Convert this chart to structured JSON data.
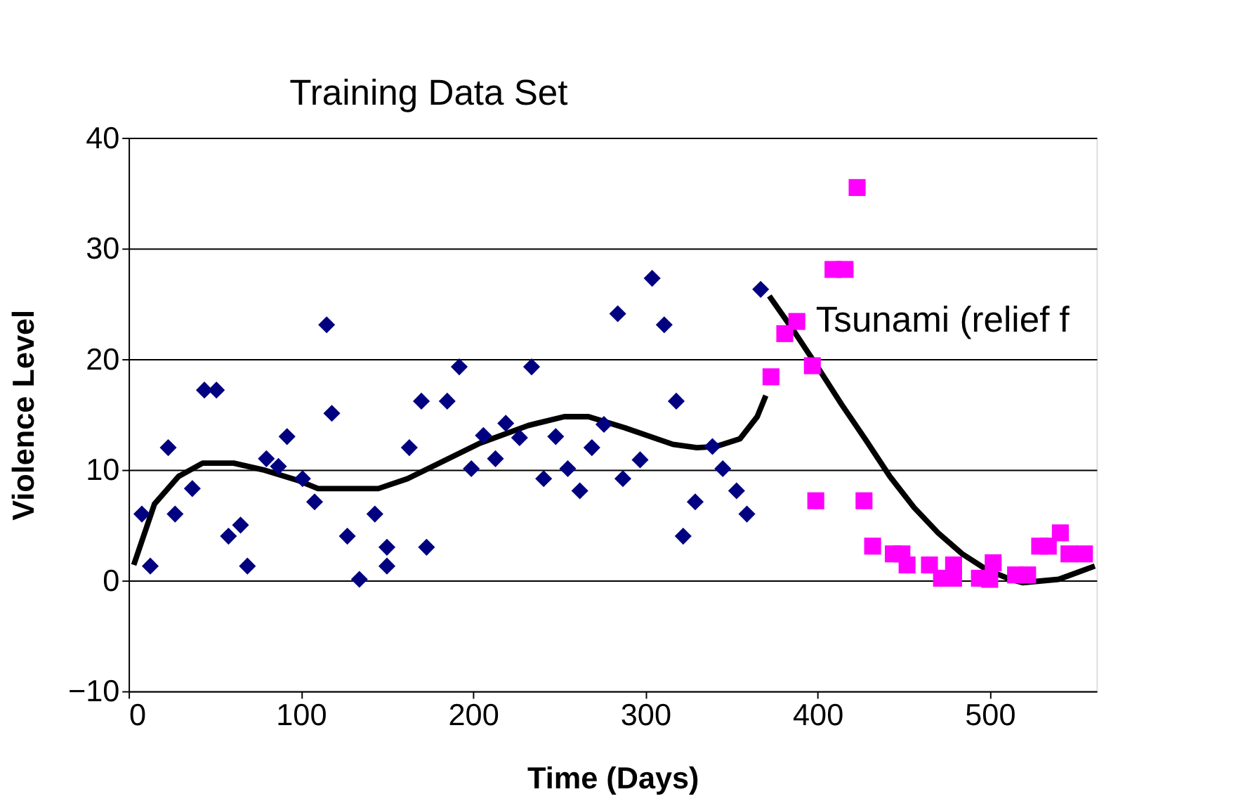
{
  "chart_data": {
    "type": "scatter",
    "xlabel": "Time (Days)",
    "ylabel": "Violence Level",
    "xlim": [
      0,
      562
    ],
    "xticks": [
      0,
      100,
      200,
      300,
      400,
      500
    ],
    "ylim": [
      -10,
      40
    ],
    "yticks": [
      -10,
      0,
      10,
      20,
      30,
      40
    ],
    "grid": "y",
    "annotations": [
      "Training  Data Set",
      "Tsunami (relief f"
    ],
    "series": [
      {
        "marker": "diamond",
        "color": "#000080",
        "x": [
          7.7,
          12.6,
          23,
          27,
          37,
          44,
          51,
          58,
          65,
          69,
          80,
          87,
          92,
          101,
          108,
          115,
          118,
          127,
          134,
          143,
          150,
          150,
          163,
          170,
          173,
          185,
          192,
          199,
          206,
          213,
          219,
          227,
          234,
          241,
          248,
          255,
          262,
          269,
          276,
          284,
          287,
          297,
          304,
          311,
          318,
          322,
          329,
          339,
          345,
          353,
          359,
          367
        ],
        "values": [
          6,
          1.3,
          12,
          6,
          8.3,
          17.2,
          17.2,
          4,
          5,
          1.3,
          11,
          10.3,
          13,
          9.2,
          7.1,
          23.1,
          15.1,
          4,
          0.1,
          6,
          3,
          1.3,
          12,
          16.2,
          3,
          16.2,
          19.3,
          10.1,
          13.1,
          11,
          14.2,
          12.9,
          19.3,
          9.2,
          13,
          10.1,
          8.1,
          12,
          14.1,
          24.1,
          9.2,
          10.9,
          27.3,
          23.1,
          16.2,
          4,
          7.1,
          12.1,
          10.1,
          8.1,
          6,
          26.3
        ]
      },
      {
        "marker": "square",
        "color": "#ff00ff",
        "x": [
          373,
          381,
          388,
          397,
          399,
          409,
          416,
          423,
          427,
          432,
          444,
          449,
          452,
          465,
          472,
          479,
          479,
          494,
          500,
          502,
          515,
          522,
          529,
          534,
          541,
          546,
          555
        ],
        "values": [
          18.4,
          22.3,
          23.4,
          19.4,
          7.2,
          28.1,
          28.1,
          35.5,
          7.2,
          3.1,
          2.4,
          2.4,
          1.4,
          1.4,
          0.2,
          1.4,
          0.2,
          0.2,
          0.1,
          1.6,
          0.5,
          0.5,
          3.1,
          3.1,
          4.3,
          2.4,
          2.4
        ]
      },
      {
        "type": "line",
        "marker": "none",
        "line_style": "solid",
        "color": "#000000",
        "x": [
          3,
          15,
          29,
          43,
          61,
          78,
          99,
          110,
          120,
          145,
          162,
          183,
          204,
          232,
          253,
          267,
          288,
          316,
          330,
          341,
          355,
          365,
          370
        ],
        "values": [
          1.4,
          6.9,
          9.4,
          10.6,
          10.6,
          10,
          9,
          8.3,
          8.3,
          8.3,
          9.2,
          10.8,
          12.4,
          14,
          14.8,
          14.8,
          13.8,
          12.3,
          12,
          12.1,
          12.8,
          14.8,
          16.7
        ]
      },
      {
        "type": "line",
        "marker": "none",
        "line_style": "solid",
        "color": "#000000",
        "x": [
          372,
          386,
          400,
          414,
          428,
          442,
          456,
          470,
          484,
          498,
          512,
          519,
          540,
          561
        ],
        "values": [
          25.7,
          22.6,
          19.3,
          15.9,
          12.7,
          9.4,
          6.6,
          4.3,
          2.4,
          1.0,
          0.1,
          -0.2,
          0.1,
          1.3
        ]
      }
    ]
  }
}
